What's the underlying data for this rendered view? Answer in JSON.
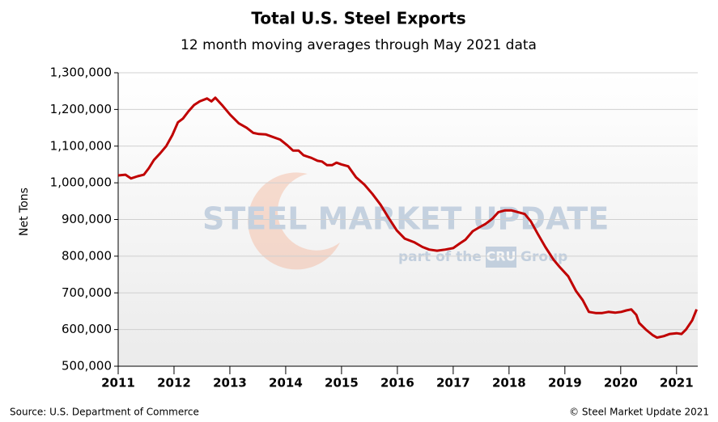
{
  "chart_data": {
    "type": "line",
    "title": "Total U.S. Steel Exports",
    "subtitle": "12 month moving averages through May 2021 data",
    "y_label": "Net Tons",
    "source": "Source: U.S. Department of Commerce",
    "copyright": "© Steel Market Update 2021",
    "watermark": {
      "brand": "STEEL MARKET UPDATE",
      "part_of": "part of the",
      "cru": "CRU",
      "group": "Group"
    },
    "color": "#c00000",
    "grid": true,
    "x": [
      2011.0,
      2011.13,
      2011.23,
      2011.35,
      2011.46,
      2011.55,
      2011.64,
      2011.75,
      2011.86,
      2011.97,
      2012.07,
      2012.16,
      2012.26,
      2012.36,
      2012.46,
      2012.59,
      2012.67,
      2012.74,
      2012.87,
      2013.01,
      2013.16,
      2013.3,
      2013.42,
      2013.52,
      2013.64,
      2013.77,
      2013.9,
      2014.03,
      2014.13,
      2014.23,
      2014.32,
      2014.46,
      2014.57,
      2014.65,
      2014.74,
      2014.83,
      2014.91,
      2015.0,
      2015.12,
      2015.26,
      2015.41,
      2015.55,
      2015.7,
      2015.84,
      2015.99,
      2016.13,
      2016.3,
      2016.45,
      2016.57,
      2016.71,
      2016.86,
      2017.0,
      2017.12,
      2017.22,
      2017.35,
      2017.46,
      2017.58,
      2017.7,
      2017.81,
      2017.93,
      2018.04,
      2018.16,
      2018.28,
      2018.39,
      2018.51,
      2018.65,
      2018.8,
      2018.91,
      2019.06,
      2019.2,
      2019.32,
      2019.43,
      2019.55,
      2019.67,
      2019.78,
      2019.9,
      2020.01,
      2020.1,
      2020.19,
      2020.28,
      2020.33,
      2020.45,
      2020.57,
      2020.65,
      2020.77,
      2020.88,
      2021.0,
      2021.09,
      2021.17,
      2021.28,
      2021.36
    ],
    "values": [
      1020000,
      1022000,
      1012000,
      1018000,
      1022000,
      1040000,
      1062000,
      1080000,
      1100000,
      1130000,
      1165000,
      1175000,
      1195000,
      1212000,
      1222000,
      1230000,
      1222000,
      1232000,
      1210000,
      1185000,
      1162000,
      1150000,
      1136000,
      1133000,
      1132000,
      1125000,
      1118000,
      1102000,
      1088000,
      1088000,
      1075000,
      1068000,
      1060000,
      1058000,
      1048000,
      1048000,
      1055000,
      1050000,
      1045000,
      1015000,
      995000,
      970000,
      940000,
      905000,
      870000,
      848000,
      838000,
      825000,
      818000,
      815000,
      818000,
      822000,
      835000,
      845000,
      868000,
      878000,
      888000,
      902000,
      920000,
      925000,
      925000,
      920000,
      915000,
      895000,
      862000,
      825000,
      790000,
      770000,
      745000,
      705000,
      680000,
      648000,
      645000,
      645000,
      648000,
      646000,
      648000,
      652000,
      655000,
      640000,
      618000,
      600000,
      585000,
      578000,
      582000,
      588000,
      590000,
      588000,
      600000,
      625000,
      655000
    ],
    "xlim": [
      2011,
      2021.38
    ],
    "xticks": [
      2011,
      2012,
      2013,
      2014,
      2015,
      2016,
      2017,
      2018,
      2019,
      2020,
      2021
    ],
    "ylim": [
      500000,
      1300000
    ],
    "yticks": [
      {
        "value": 500000,
        "label": "500,000"
      },
      {
        "value": 600000,
        "label": "600,000"
      },
      {
        "value": 700000,
        "label": "700,000"
      },
      {
        "value": 800000,
        "label": "800,000"
      },
      {
        "value": 900000,
        "label": "900,000"
      },
      {
        "value": 1000000,
        "label": "1,000,000"
      },
      {
        "value": 1100000,
        "label": "1,100,000"
      },
      {
        "value": 1200000,
        "label": "1,200,000"
      },
      {
        "value": 1300000,
        "label": "1,300,000"
      }
    ]
  }
}
